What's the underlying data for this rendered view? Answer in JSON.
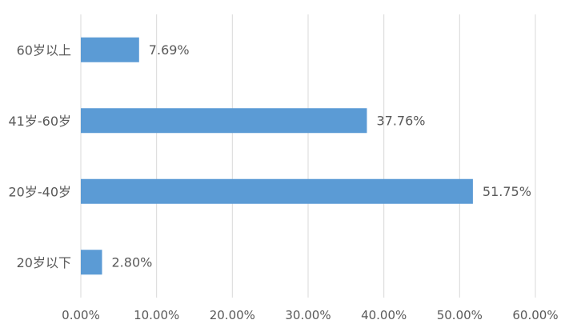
{
  "chart_data": {
    "type": "bar",
    "orientation": "horizontal",
    "categories": [
      "60岁以上",
      "41岁-60岁",
      "20岁-40岁",
      "20岁以下"
    ],
    "values": [
      7.69,
      37.76,
      51.75,
      2.8
    ],
    "data_labels": [
      "7.69%",
      "37.76%",
      "51.75%",
      "2.80%"
    ],
    "x_ticks": [
      "0.00%",
      "10.00%",
      "20.00%",
      "30.00%",
      "40.00%",
      "50.00%",
      "60.00%"
    ],
    "xlim": [
      0,
      60
    ],
    "grid": "vertical",
    "legend": "none",
    "bar_color": "#5b9bd5",
    "grid_color": "#d9d9d9",
    "text_color": "#595959"
  }
}
